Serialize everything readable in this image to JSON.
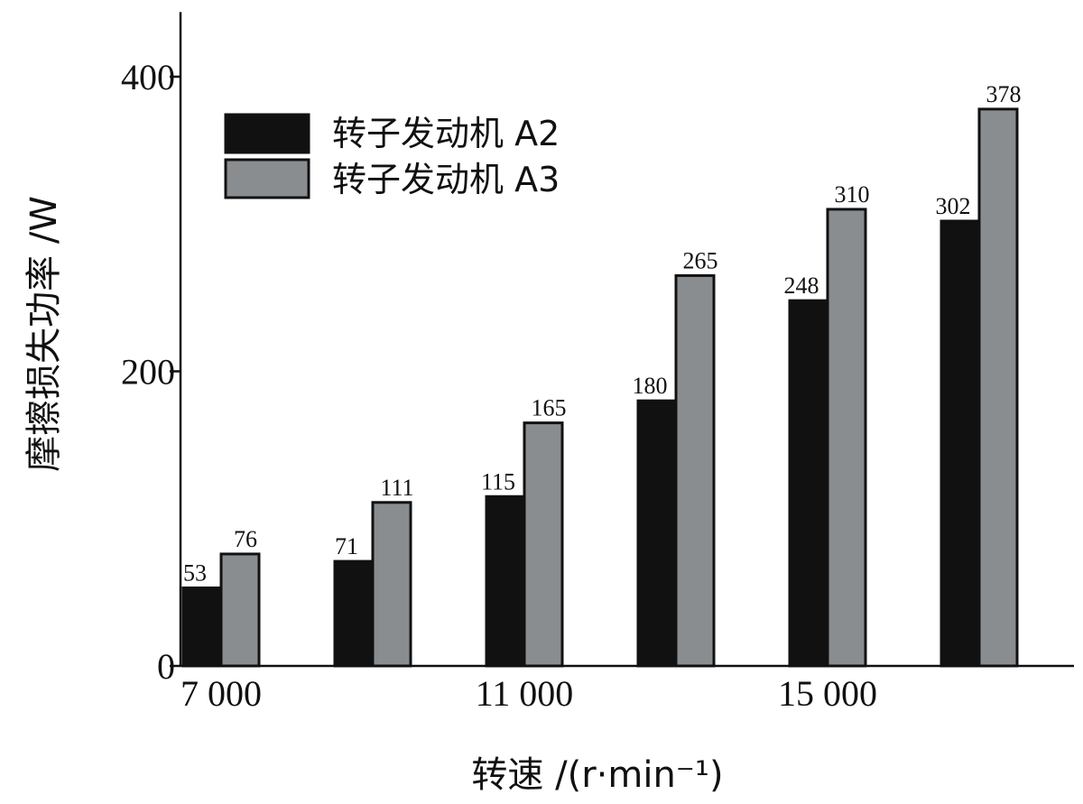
{
  "chart_data": {
    "type": "bar",
    "categories": [
      "7 000",
      "9 000",
      "11 000",
      "13 000",
      "15 000",
      "17 000"
    ],
    "x_tick_labels": [
      "7 000",
      "11 000",
      "15 000"
    ],
    "series": [
      {
        "name": "转子发动机 A2",
        "values": [
          53,
          71,
          115,
          180,
          248,
          302
        ],
        "color": "#111111"
      },
      {
        "name": "转子发动机 A3",
        "values": [
          76,
          111,
          165,
          265,
          310,
          378
        ],
        "color": "#8a8d90"
      }
    ],
    "y_ticks": [
      0,
      200,
      400
    ],
    "ylim": [
      0,
      450
    ],
    "xlabel": "转速 /(r·min⁻¹)",
    "ylabel": "摩擦损失功率 /W",
    "legend_position": "top-left",
    "grid": false
  }
}
